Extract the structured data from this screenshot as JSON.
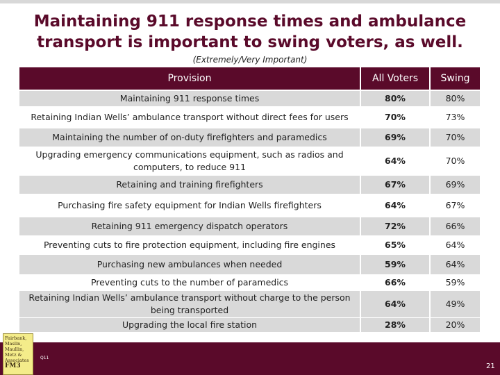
{
  "title": "Maintaining 911 response times and ambulance transport is important to swing voters, as well.",
  "subtitle": "(Extremely/Very Important)",
  "table": {
    "headers": {
      "provision": "Provision",
      "all_voters": "All  Voters",
      "swing": "Swing"
    },
    "rows": [
      {
        "provision": "Maintaining 911 response times",
        "all_voters": "80%",
        "swing": "80%"
      },
      {
        "provision": "Retaining Indian Wells’ ambulance transport without direct fees for users",
        "all_voters": "70%",
        "swing": "73%"
      },
      {
        "provision": "Maintaining the number of on-duty firefighters and paramedics",
        "all_voters": "69%",
        "swing": "70%"
      },
      {
        "provision": "Upgrading emergency communications equipment, such as radios and computers, to reduce 911",
        "all_voters": "64%",
        "swing": "70%"
      },
      {
        "provision": "Retaining and training firefighters",
        "all_voters": "67%",
        "swing": "69%"
      },
      {
        "provision": "Purchasing fire safety equipment for Indian Wells firefighters",
        "all_voters": "64%",
        "swing": "67%"
      },
      {
        "provision": "Retaining 911 emergency dispatch operators",
        "all_voters": "72%",
        "swing": "66%"
      },
      {
        "provision": "Preventing cuts to fire protection equipment, including fire engines",
        "all_voters": "65%",
        "swing": "64%"
      },
      {
        "provision": "Purchasing new ambulances when needed",
        "all_voters": "59%",
        "swing": "64%"
      },
      {
        "provision": "Preventing cuts to the number of paramedics",
        "all_voters": "66%",
        "swing": "59%"
      },
      {
        "provision": "Retaining Indian Wells’ ambulance transport without charge to the person being transported",
        "all_voters": "64%",
        "swing": "49%"
      },
      {
        "provision": "Upgrading the local fire station",
        "all_voters": "28%",
        "swing": "20%"
      }
    ]
  },
  "footer": {
    "logo_text": "Fairbank, Maslin, Maullin, Metz & Associates",
    "logo_mark": "FM3",
    "question_code": "Q11",
    "page_number": "21"
  },
  "colors": {
    "brand": "#5a0a2a",
    "row_shade": "#d9d9d9",
    "logo_bg": "#f4ec8a"
  }
}
